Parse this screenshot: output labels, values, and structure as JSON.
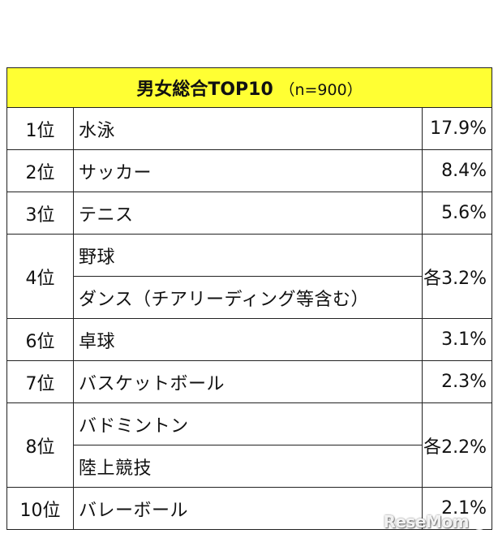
{
  "table": {
    "title": "男女総合TOP10",
    "subtitle": "（n=900）",
    "rows": [
      {
        "rank": "1位",
        "items": [
          "水泳"
        ],
        "percent": "17.9%"
      },
      {
        "rank": "2位",
        "items": [
          "サッカー"
        ],
        "percent": "8.4%"
      },
      {
        "rank": "3位",
        "items": [
          "テニス"
        ],
        "percent": "5.6%"
      },
      {
        "rank": "4位",
        "items": [
          "野球",
          "ダンス（チアリーディング等含む）"
        ],
        "percent": "各3.2%"
      },
      {
        "rank": "6位",
        "items": [
          "卓球"
        ],
        "percent": "3.1%"
      },
      {
        "rank": "7位",
        "items": [
          "バスケットボール"
        ],
        "percent": "2.3%"
      },
      {
        "rank": "8位",
        "items": [
          "バドミントン",
          "陸上競技"
        ],
        "percent": "各2.2%"
      },
      {
        "rank": "10位",
        "items": [
          "バレーボール"
        ],
        "percent": "2.1%"
      }
    ]
  },
  "watermark": {
    "text": "ReseMom",
    "icon": "resemom-logo-icon"
  },
  "colors": {
    "header_bg": "#ffff33",
    "border": "#222222"
  }
}
